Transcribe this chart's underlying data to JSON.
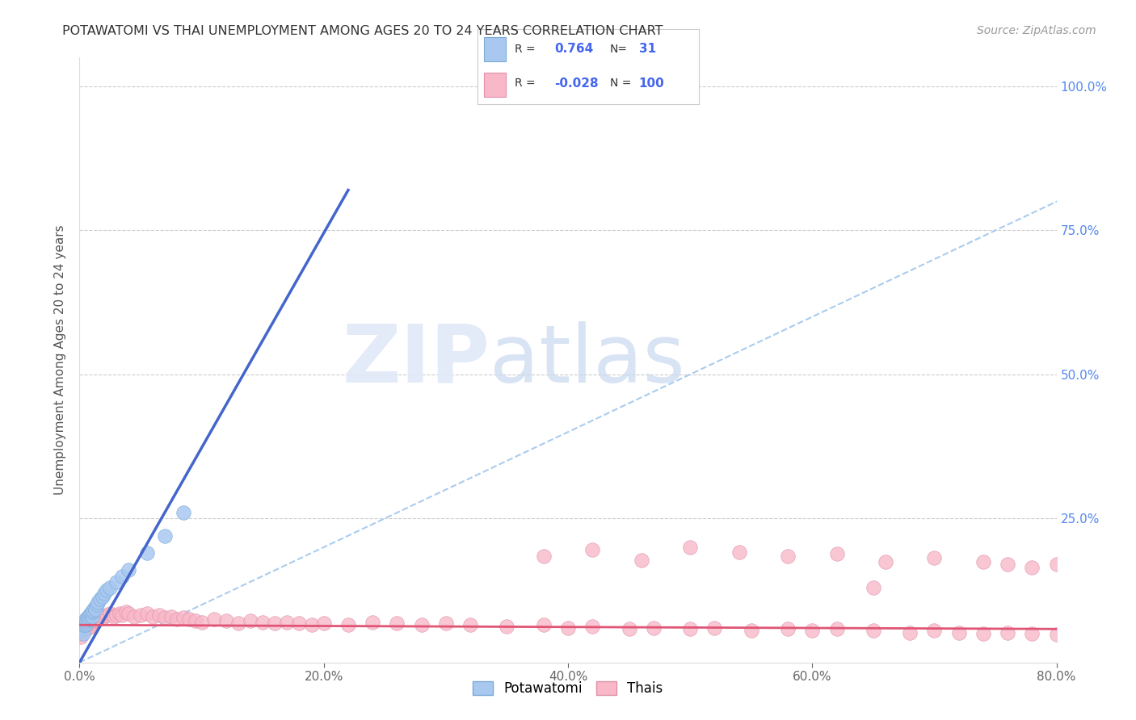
{
  "title": "POTAWATOMI VS THAI UNEMPLOYMENT AMONG AGES 20 TO 24 YEARS CORRELATION CHART",
  "source": "Source: ZipAtlas.com",
  "ylabel": "Unemployment Among Ages 20 to 24 years",
  "xlim": [
    0.0,
    0.8
  ],
  "ylim": [
    0.0,
    1.05
  ],
  "xtick_labels": [
    "0.0%",
    "20.0%",
    "40.0%",
    "60.0%",
    "80.0%"
  ],
  "xtick_vals": [
    0.0,
    0.2,
    0.4,
    0.6,
    0.8
  ],
  "ytick_labels": [
    "",
    "25.0%",
    "50.0%",
    "75.0%",
    "100.0%"
  ],
  "ytick_vals": [
    0.0,
    0.25,
    0.5,
    0.75,
    1.0
  ],
  "background_color": "#ffffff",
  "grid_color": "#cccccc",
  "watermark_zip": "ZIP",
  "watermark_atlas": "atlas",
  "potawatomi_color": "#A8C8F0",
  "potawatomi_edge": "#7AAAD8",
  "thai_color": "#F8B8C8",
  "thai_edge": "#E090A8",
  "blue_line_color": "#4466CC",
  "pink_line_color": "#E05575",
  "diag_line_color": "#AACCEE",
  "R_potawatomi": "0.764",
  "N_potawatomi": "31",
  "R_thai": "-0.028",
  "N_thai": "100",
  "legend_label_potawatomi": "Potawatomi",
  "legend_label_thai": "Thais",
  "blue_line_x0": 0.0,
  "blue_line_y0": 0.0,
  "blue_line_x1": 0.22,
  "blue_line_y1": 0.82,
  "pink_line_x0": 0.0,
  "pink_line_y0": 0.065,
  "pink_line_x1": 0.8,
  "pink_line_y1": 0.058,
  "potawatomi_x": [
    0.001,
    0.002,
    0.003,
    0.003,
    0.004,
    0.005,
    0.005,
    0.006,
    0.006,
    0.007,
    0.007,
    0.008,
    0.009,
    0.01,
    0.01,
    0.011,
    0.012,
    0.013,
    0.014,
    0.015,
    0.017,
    0.019,
    0.02,
    0.022,
    0.025,
    0.03,
    0.035,
    0.04,
    0.055,
    0.07,
    0.085
  ],
  "potawatomi_y": [
    0.055,
    0.06,
    0.05,
    0.065,
    0.07,
    0.065,
    0.075,
    0.068,
    0.072,
    0.075,
    0.08,
    0.082,
    0.085,
    0.08,
    0.088,
    0.09,
    0.095,
    0.092,
    0.1,
    0.105,
    0.11,
    0.115,
    0.12,
    0.125,
    0.13,
    0.14,
    0.15,
    0.16,
    0.19,
    0.22,
    0.26
  ],
  "thai_x": [
    0.0,
    0.001,
    0.001,
    0.002,
    0.002,
    0.003,
    0.003,
    0.004,
    0.004,
    0.005,
    0.005,
    0.006,
    0.006,
    0.007,
    0.007,
    0.008,
    0.008,
    0.009,
    0.009,
    0.01,
    0.01,
    0.011,
    0.012,
    0.013,
    0.014,
    0.015,
    0.016,
    0.017,
    0.018,
    0.02,
    0.022,
    0.025,
    0.028,
    0.03,
    0.033,
    0.035,
    0.038,
    0.04,
    0.045,
    0.05,
    0.055,
    0.06,
    0.065,
    0.07,
    0.075,
    0.08,
    0.085,
    0.09,
    0.095,
    0.1,
    0.11,
    0.12,
    0.13,
    0.14,
    0.15,
    0.16,
    0.17,
    0.18,
    0.19,
    0.2,
    0.22,
    0.24,
    0.26,
    0.28,
    0.3,
    0.32,
    0.35,
    0.38,
    0.4,
    0.42,
    0.45,
    0.47,
    0.5,
    0.52,
    0.55,
    0.58,
    0.6,
    0.62,
    0.65,
    0.68,
    0.7,
    0.72,
    0.74,
    0.76,
    0.78,
    0.8,
    0.38,
    0.42,
    0.46,
    0.5,
    0.54,
    0.58,
    0.62,
    0.66,
    0.7,
    0.74,
    0.76,
    0.78,
    0.8,
    0.65
  ],
  "thai_y": [
    0.05,
    0.06,
    0.045,
    0.065,
    0.055,
    0.07,
    0.06,
    0.068,
    0.055,
    0.072,
    0.062,
    0.075,
    0.065,
    0.07,
    0.06,
    0.075,
    0.065,
    0.07,
    0.062,
    0.075,
    0.068,
    0.072,
    0.078,
    0.074,
    0.08,
    0.075,
    0.078,
    0.082,
    0.076,
    0.08,
    0.082,
    0.085,
    0.08,
    0.082,
    0.085,
    0.082,
    0.088,
    0.085,
    0.08,
    0.082,
    0.085,
    0.08,
    0.082,
    0.078,
    0.08,
    0.075,
    0.078,
    0.075,
    0.072,
    0.07,
    0.075,
    0.072,
    0.068,
    0.072,
    0.07,
    0.068,
    0.07,
    0.068,
    0.065,
    0.068,
    0.065,
    0.07,
    0.068,
    0.065,
    0.068,
    0.065,
    0.062,
    0.065,
    0.06,
    0.062,
    0.058,
    0.06,
    0.058,
    0.06,
    0.055,
    0.058,
    0.055,
    0.058,
    0.055,
    0.052,
    0.055,
    0.052,
    0.05,
    0.052,
    0.05,
    0.048,
    0.185,
    0.195,
    0.178,
    0.2,
    0.192,
    0.185,
    0.188,
    0.175,
    0.182,
    0.175,
    0.17,
    0.165,
    0.17,
    0.13
  ]
}
